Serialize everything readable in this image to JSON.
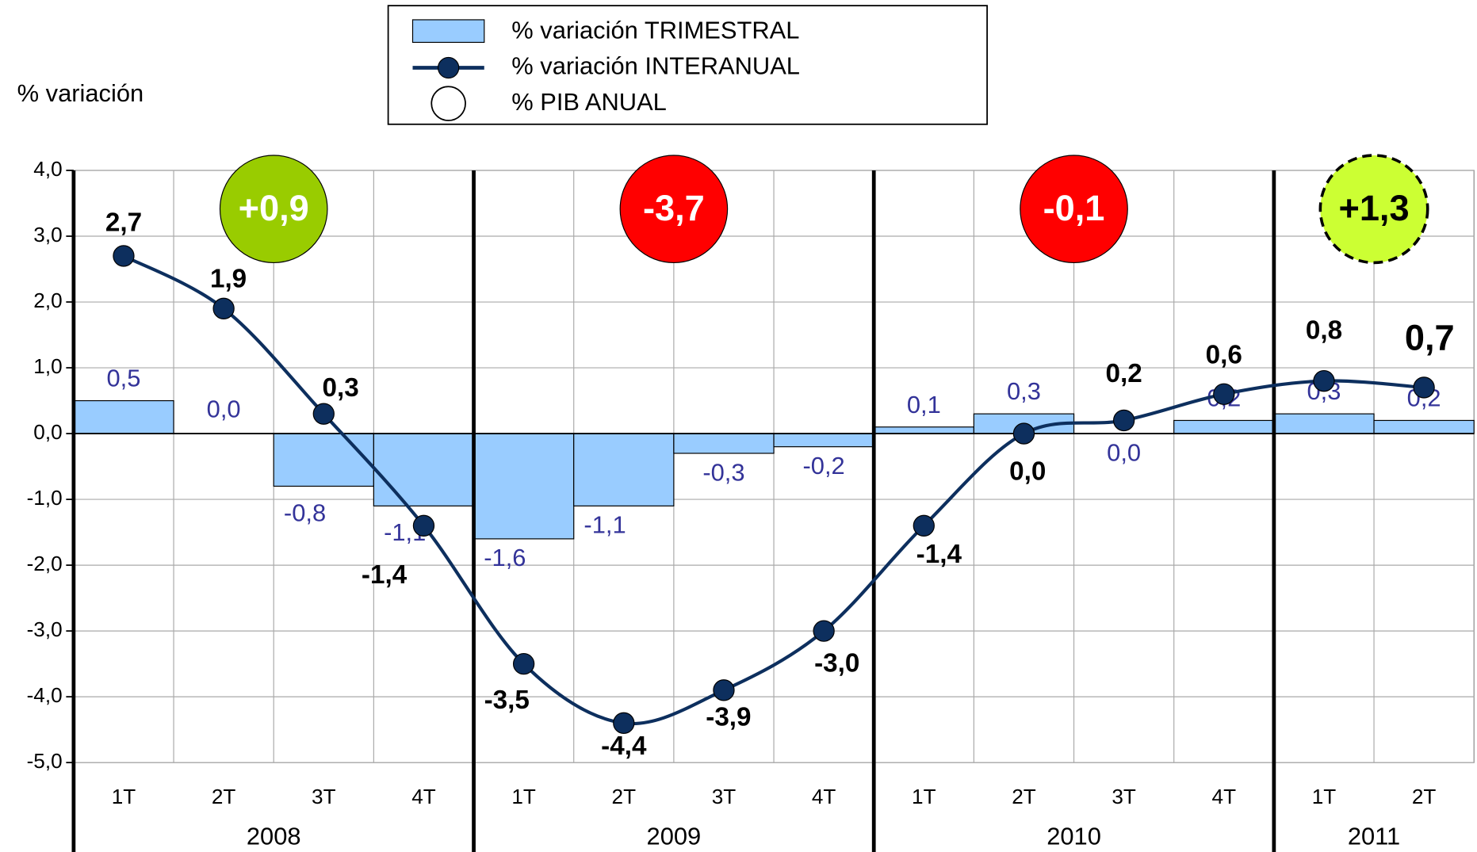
{
  "chart_data": {
    "type": "bar",
    "y_axis_label": "% variación",
    "years": [
      {
        "name": "2008",
        "quarters": [
          "1T",
          "2T",
          "3T",
          "4T"
        ]
      },
      {
        "name": "2009",
        "quarters": [
          "1T",
          "2T",
          "3T",
          "4T"
        ]
      },
      {
        "name": "2010",
        "quarters": [
          "1T",
          "2T",
          "3T",
          "4T"
        ]
      },
      {
        "name": "2011",
        "quarters": [
          "1T",
          "2T"
        ]
      }
    ],
    "ylim": [
      -5,
      4
    ],
    "yticks": [
      {
        "value": 4,
        "label": "4,0"
      },
      {
        "value": 3,
        "label": "3,0"
      },
      {
        "value": 2,
        "label": "2,0"
      },
      {
        "value": 1,
        "label": "1,0"
      },
      {
        "value": 0,
        "label": "0,0"
      },
      {
        "value": -1,
        "label": "-1,0"
      },
      {
        "value": -2,
        "label": "-2,0"
      },
      {
        "value": -3,
        "label": "-3,0"
      },
      {
        "value": -4,
        "label": "-4,0"
      },
      {
        "value": -5,
        "label": "-5,0"
      }
    ],
    "grid": true,
    "series": [
      {
        "name": "% variación TRIMESTRAL",
        "type": "bar",
        "color": "#99ccff",
        "values": [
          0.5,
          0.0,
          -0.8,
          -1.1,
          -1.6,
          -1.1,
          -0.3,
          -0.2,
          0.1,
          0.3,
          0.0,
          0.2,
          0.3,
          0.2
        ],
        "value_labels": [
          "0,5",
          "0,0",
          "-0,8",
          "-1,1",
          "-1,6",
          "-1,1",
          "-0,3",
          "-0,2",
          "0,1",
          "0,3",
          "0,0",
          "0,2",
          "0,3",
          "0,2"
        ]
      },
      {
        "name": "% variación INTERANUAL",
        "type": "line",
        "color": "#0d2f5e",
        "values": [
          2.7,
          1.9,
          0.3,
          -1.4,
          -3.5,
          -4.4,
          -3.9,
          -3.0,
          -1.4,
          0.0,
          0.2,
          0.6,
          0.8,
          0.7
        ],
        "value_labels": [
          "2,7",
          "1,9",
          "0,3",
          "-1,4",
          "-3,5",
          "-4,4",
          "-3,9",
          "-3,0",
          "-1,4",
          "0,0",
          "0,2",
          "0,6",
          "0,8",
          "0,7"
        ]
      },
      {
        "name": "% PIB ANUAL",
        "type": "annual",
        "values": [
          0.9,
          -3.7,
          -0.1,
          1.3
        ],
        "value_labels": [
          "+0,9",
          "-3,7",
          "-0,1",
          "+1,3"
        ],
        "colors": [
          "#99cc00",
          "#ff0000",
          "#ff0000",
          "#ccff33"
        ]
      }
    ]
  }
}
